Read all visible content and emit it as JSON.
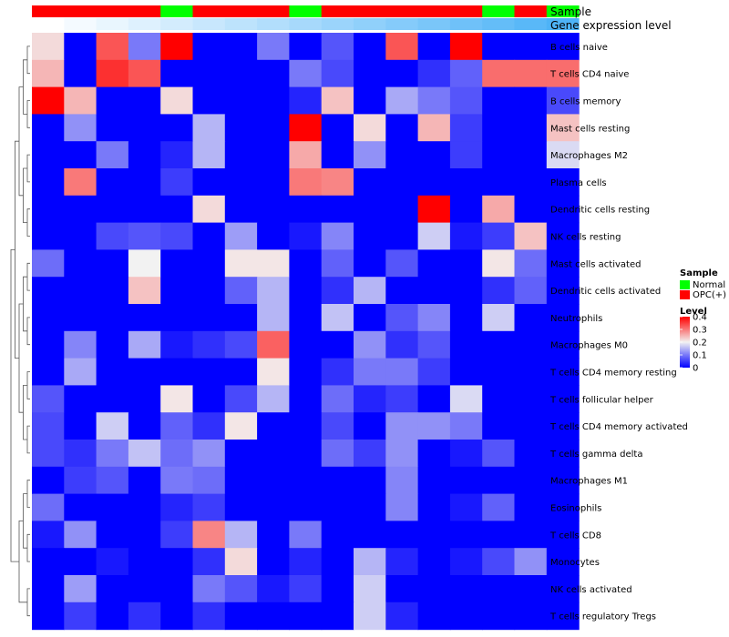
{
  "chart_data": {
    "type": "heatmap",
    "annotations": {
      "sample_label": "Sample",
      "expression_label": "Gene expression level",
      "sample": [
        "OPC(+)",
        "OPC(+)",
        "OPC(+)",
        "OPC(+)",
        "Normal",
        "OPC(+)",
        "OPC(+)",
        "OPC(+)",
        "Normal",
        "OPC(+)",
        "OPC(+)",
        "OPC(+)",
        "OPC(+)",
        "OPC(+)",
        "Normal",
        "OPC(+)",
        "Normal"
      ],
      "expression_level": [
        0.0,
        0.02,
        0.04,
        0.06,
        0.08,
        0.1,
        0.12,
        0.14,
        0.16,
        0.18,
        0.2,
        0.22,
        0.24,
        0.26,
        0.28,
        0.3,
        0.32
      ]
    },
    "rows": [
      "B cells naive",
      "T cells CD4 naive",
      "B cells memory",
      "Mast cells resting",
      "Macrophages M2",
      "Plasma cells",
      "Dendritic cells resting",
      "NK cells resting",
      "Mast cells activated",
      "Dendritic cells activated",
      "Neutrophils",
      "Macrophages M0",
      "T cells CD4 memory resting",
      "T cells follicular helper",
      "T cells CD4 memory activated",
      "T cells gamma delta",
      "Macrophages M1",
      "Eosinophils",
      "T cells CD8",
      "Monocytes",
      "NK cells activated",
      "T cells regulatory  Tregs"
    ],
    "values": [
      [
        0.22,
        0.0,
        0.33,
        0.1,
        0.4,
        0.0,
        0.0,
        0.1,
        0.0,
        0.07,
        0.0,
        0.33,
        0.0,
        0.4,
        0.0,
        0.0,
        0.0
      ],
      [
        0.25,
        0.0,
        0.36,
        0.33,
        0.0,
        0.0,
        0.0,
        0.0,
        0.1,
        0.06,
        0.0,
        0.0,
        0.04,
        0.08,
        0.31,
        0.31,
        0.31
      ],
      [
        0.4,
        0.25,
        0.0,
        0.0,
        0.22,
        0.0,
        0.0,
        0.0,
        0.03,
        0.24,
        0.0,
        0.14,
        0.1,
        0.07,
        0.0,
        0.0,
        0.06
      ],
      [
        0.0,
        0.12,
        0.0,
        0.0,
        0.0,
        0.15,
        0.0,
        0.0,
        0.4,
        0.0,
        0.22,
        0.0,
        0.25,
        0.05,
        0.0,
        0.0,
        0.24
      ],
      [
        0.0,
        0.0,
        0.1,
        0.0,
        0.03,
        0.15,
        0.0,
        0.0,
        0.26,
        0.0,
        0.12,
        0.0,
        0.0,
        0.05,
        0.0,
        0.0,
        0.18
      ],
      [
        0.0,
        0.3,
        0.0,
        0.0,
        0.05,
        0.0,
        0.0,
        0.0,
        0.3,
        0.29,
        0.0,
        0.0,
        0.0,
        0.0,
        0.0,
        0.0,
        0.0
      ],
      [
        0.0,
        0.0,
        0.0,
        0.0,
        0.0,
        0.22,
        0.0,
        0.0,
        0.0,
        0.0,
        0.0,
        0.0,
        0.4,
        0.0,
        0.26,
        0.0,
        0.0
      ],
      [
        0.0,
        0.0,
        0.06,
        0.07,
        0.06,
        0.0,
        0.13,
        0.0,
        0.02,
        0.11,
        0.0,
        0.0,
        0.17,
        0.02,
        0.05,
        0.24,
        0.0
      ],
      [
        0.09,
        0.0,
        0.0,
        0.2,
        0.0,
        0.0,
        0.21,
        0.21,
        0.0,
        0.08,
        0.0,
        0.07,
        0.0,
        0.0,
        0.21,
        0.09,
        0.0
      ],
      [
        0.0,
        0.0,
        0.0,
        0.24,
        0.0,
        0.0,
        0.08,
        0.15,
        0.0,
        0.04,
        0.15,
        0.0,
        0.0,
        0.0,
        0.04,
        0.08,
        0.0
      ],
      [
        0.0,
        0.0,
        0.0,
        0.0,
        0.0,
        0.0,
        0.0,
        0.15,
        0.0,
        0.16,
        0.0,
        0.07,
        0.11,
        0.0,
        0.17,
        0.0,
        0.0
      ],
      [
        0.0,
        0.11,
        0.0,
        0.14,
        0.02,
        0.04,
        0.06,
        0.32,
        0.0,
        0.0,
        0.12,
        0.04,
        0.07,
        0.0,
        0.0,
        0.0,
        0.0
      ],
      [
        0.0,
        0.14,
        0.0,
        0.0,
        0.0,
        0.0,
        0.0,
        0.21,
        0.0,
        0.04,
        0.1,
        0.1,
        0.05,
        0.0,
        0.0,
        0.0,
        0.0
      ],
      [
        0.07,
        0.0,
        0.0,
        0.0,
        0.21,
        0.0,
        0.06,
        0.15,
        0.0,
        0.09,
        0.03,
        0.05,
        0.0,
        0.18,
        0.0,
        0.0,
        0.0
      ],
      [
        0.06,
        0.0,
        0.17,
        0.0,
        0.08,
        0.04,
        0.21,
        0.0,
        0.0,
        0.06,
        0.0,
        0.12,
        0.12,
        0.1,
        0.0,
        0.0,
        0.0
      ],
      [
        0.06,
        0.04,
        0.1,
        0.16,
        0.09,
        0.12,
        0.0,
        0.0,
        0.0,
        0.09,
        0.05,
        0.12,
        0.0,
        0.02,
        0.07,
        0.0,
        0.0
      ],
      [
        0.0,
        0.05,
        0.07,
        0.0,
        0.1,
        0.09,
        0.0,
        0.0,
        0.0,
        0.0,
        0.0,
        0.11,
        0.0,
        0.0,
        0.0,
        0.0,
        0.0
      ],
      [
        0.09,
        0.0,
        0.0,
        0.0,
        0.03,
        0.05,
        0.0,
        0.0,
        0.0,
        0.0,
        0.0,
        0.11,
        0.0,
        0.02,
        0.08,
        0.0,
        0.0
      ],
      [
        0.02,
        0.12,
        0.0,
        0.0,
        0.05,
        0.29,
        0.15,
        0.0,
        0.1,
        0.0,
        0.0,
        0.0,
        0.0,
        0.0,
        0.0,
        0.0,
        0.0
      ],
      [
        0.0,
        0.0,
        0.02,
        0.0,
        0.0,
        0.04,
        0.22,
        0.0,
        0.03,
        0.0,
        0.15,
        0.03,
        0.0,
        0.02,
        0.06,
        0.12,
        0.0
      ],
      [
        0.0,
        0.13,
        0.0,
        0.0,
        0.0,
        0.1,
        0.07,
        0.02,
        0.05,
        0.0,
        0.17,
        0.0,
        0.0,
        0.0,
        0.0,
        0.0,
        0.0
      ],
      [
        0.0,
        0.05,
        0.0,
        0.04,
        0.0,
        0.04,
        0.0,
        0.0,
        0.0,
        0.0,
        0.17,
        0.03,
        0.0,
        0.0,
        0.0,
        0.0,
        0.0
      ]
    ],
    "color_scale": {
      "min": 0,
      "mid": 0.2,
      "max": 0.4,
      "low_color": "#0000ff",
      "mid_color": "#f2f2f2",
      "high_color": "#ff0000"
    },
    "dendrogram": {
      "leaf_order": [
        0,
        1,
        2,
        3,
        4,
        5,
        6,
        7,
        8,
        9,
        10,
        11,
        12,
        13,
        14,
        15,
        16,
        17,
        18,
        19,
        20,
        21
      ]
    },
    "legend": {
      "sample_title": "Sample",
      "sample_items": [
        {
          "name": "Normal",
          "color": "#00ff00"
        },
        {
          "name": "OPC(+)",
          "color": "#ff0000"
        }
      ],
      "level_title": "Level",
      "level_ticks": [
        "0.4",
        "0.3",
        "0.2",
        "0.1",
        "0"
      ],
      "level_values": [
        0.4,
        0.3,
        0.2,
        0.1,
        0
      ]
    }
  },
  "colors": {
    "normal": "#00ff00",
    "opc": "#ff0000",
    "expr_low": "#ffffff",
    "expr_high": "#4eb3f7"
  }
}
